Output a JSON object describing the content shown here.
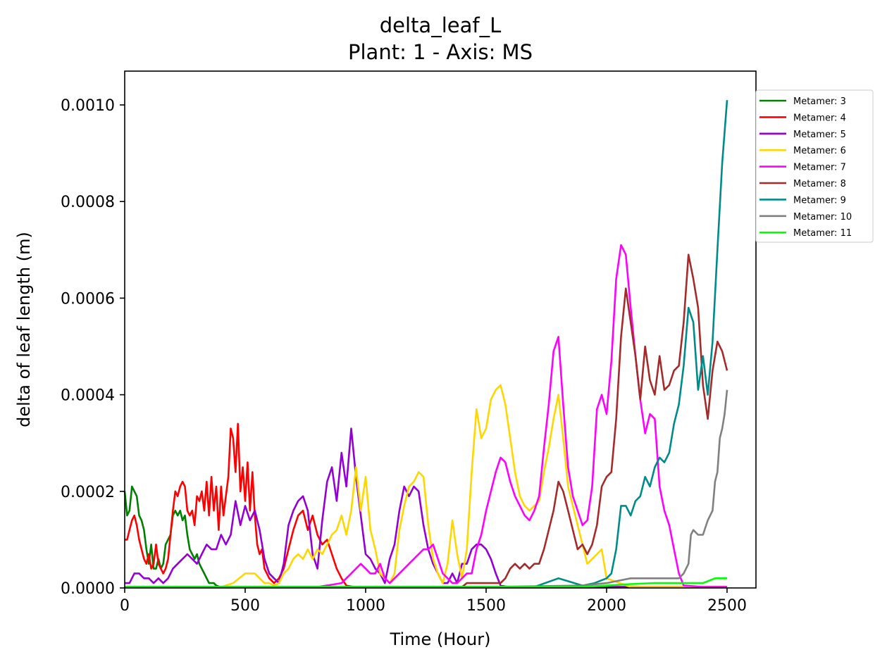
{
  "chart_data": {
    "type": "line",
    "title": "delta_leaf_L",
    "subtitle": "Plant: 1 - Axis: MS",
    "xlabel": "Time (Hour)",
    "ylabel": "delta of leaf length (m)",
    "xlim": [
      0,
      2620
    ],
    "ylim": [
      0,
      0.00107
    ],
    "xticks": [
      0,
      500,
      1000,
      1500,
      2000,
      2500
    ],
    "xtick_labels": [
      "0",
      "500",
      "1000",
      "1500",
      "2000",
      "2500"
    ],
    "yticks": [
      0,
      0.0002,
      0.0004,
      0.0006,
      0.0008,
      0.001
    ],
    "ytick_labels": [
      "0.0000",
      "0.0002",
      "0.0004",
      "0.0006",
      "0.0008",
      "0.0010"
    ],
    "grid": false,
    "legend_position": "upper-right-outside",
    "series": [
      {
        "name": "Metamer: 3",
        "color": "#008000",
        "x": [
          0,
          10,
          20,
          30,
          40,
          50,
          60,
          70,
          80,
          90,
          100,
          110,
          120,
          130,
          140,
          150,
          160,
          170,
          180,
          190,
          200,
          210,
          220,
          230,
          240,
          250,
          260,
          270,
          280,
          290,
          300,
          310,
          320,
          330,
          340,
          350,
          360,
          370,
          380,
          390,
          400,
          450,
          500,
          550,
          600,
          650,
          700,
          750,
          800,
          850,
          900,
          950,
          1000,
          1050,
          1100,
          1200,
          1300,
          1400,
          1500,
          1600,
          1700,
          1800,
          1900,
          2000,
          2100,
          2200,
          2300,
          2400,
          2500
        ],
        "y": [
          0.0002,
          0.00015,
          0.00016,
          0.00021,
          0.0002,
          0.00019,
          0.00015,
          0.00014,
          0.00012,
          8e-05,
          5e-05,
          9e-05,
          4e-05,
          4e-05,
          6e-05,
          4e-05,
          5e-05,
          9e-05,
          0.0001,
          0.00011,
          0.00015,
          0.00016,
          0.00015,
          0.00016,
          0.00014,
          0.00015,
          0.00011,
          8e-05,
          7e-05,
          6e-05,
          7e-05,
          5e-05,
          4e-05,
          3e-05,
          2e-05,
          1e-05,
          1e-05,
          1e-05,
          5e-06,
          3e-06,
          2e-06,
          2e-06,
          2e-06,
          2e-06,
          2e-06,
          2e-06,
          2e-06,
          2e-06,
          2e-06,
          2e-06,
          2e-06,
          2e-06,
          2e-06,
          2e-06,
          2e-06,
          2e-06,
          2e-06,
          2e-06,
          2e-06,
          2e-06,
          2e-06,
          2e-06,
          2e-06,
          2e-06,
          2e-06,
          2e-06,
          2e-06,
          2e-06,
          2e-06
        ]
      },
      {
        "name": "Metamer: 4",
        "color": "#ff0000",
        "x": [
          0,
          10,
          20,
          30,
          40,
          50,
          60,
          70,
          80,
          90,
          100,
          110,
          120,
          130,
          140,
          150,
          160,
          170,
          180,
          190,
          200,
          210,
          220,
          230,
          240,
          250,
          260,
          270,
          280,
          290,
          300,
          310,
          320,
          330,
          340,
          350,
          360,
          370,
          380,
          390,
          400,
          410,
          420,
          430,
          440,
          450,
          460,
          470,
          480,
          490,
          500,
          510,
          520,
          530,
          540,
          550,
          560,
          570,
          580,
          600,
          620,
          640,
          660,
          680,
          700,
          720,
          740,
          760,
          780,
          800,
          820,
          840,
          860,
          880,
          900,
          920,
          940,
          960,
          1000,
          1100,
          1200,
          1300,
          1400,
          1500,
          1600,
          1800,
          2000,
          2200,
          2400,
          2500
        ],
        "y": [
          0.0001,
          0.0001,
          0.00012,
          0.00014,
          0.00015,
          0.00013,
          0.0001,
          8e-05,
          6e-05,
          5e-05,
          7e-05,
          4e-05,
          5e-05,
          9e-05,
          5e-05,
          4e-05,
          3e-05,
          4e-05,
          6e-05,
          0.00011,
          0.00016,
          0.0002,
          0.00019,
          0.00021,
          0.00022,
          0.00021,
          0.00016,
          0.00015,
          0.00016,
          0.00013,
          0.00019,
          0.00018,
          0.0002,
          0.00016,
          0.00022,
          0.00015,
          0.00023,
          0.00016,
          0.00021,
          0.00012,
          0.00021,
          0.00015,
          0.00019,
          0.00023,
          0.00033,
          0.00031,
          0.00024,
          0.00034,
          0.0002,
          0.00025,
          0.00018,
          0.00026,
          0.00016,
          0.00024,
          0.00015,
          9e-05,
          7e-05,
          8e-05,
          4e-05,
          2e-05,
          1e-05,
          2e-05,
          4e-05,
          8e-05,
          0.00012,
          0.00015,
          0.00016,
          0.00012,
          0.00015,
          0.00011,
          9e-05,
          0.0001,
          7e-05,
          4e-05,
          2e-05,
          5e-06,
          3e-06,
          2e-06,
          2e-06,
          2e-06,
          2e-06,
          2e-06,
          2e-06,
          2e-06,
          2e-06,
          2e-06,
          2e-06,
          2e-06,
          2e-06,
          2e-06
        ]
      },
      {
        "name": "Metamer: 5",
        "color": "#9400d3",
        "x": [
          0,
          20,
          40,
          60,
          80,
          100,
          120,
          140,
          160,
          180,
          200,
          220,
          240,
          260,
          280,
          300,
          320,
          340,
          360,
          380,
          400,
          420,
          440,
          460,
          480,
          500,
          520,
          540,
          560,
          580,
          600,
          620,
          640,
          660,
          680,
          700,
          720,
          740,
          760,
          780,
          800,
          820,
          840,
          860,
          880,
          900,
          920,
          940,
          960,
          980,
          1000,
          1020,
          1040,
          1060,
          1080,
          1100,
          1120,
          1140,
          1160,
          1180,
          1200,
          1220,
          1240,
          1260,
          1280,
          1300,
          1320,
          1340,
          1360,
          1380,
          1400,
          1420,
          1440,
          1460,
          1480,
          1500,
          1520,
          1540,
          1560,
          1580,
          1600,
          1800,
          2000,
          2200,
          2400,
          2500
        ],
        "y": [
          1e-05,
          1e-05,
          3e-05,
          3e-05,
          2e-05,
          2e-05,
          1e-05,
          2e-05,
          1e-05,
          2e-05,
          4e-05,
          5e-05,
          6e-05,
          7e-05,
          6e-05,
          5e-05,
          7e-05,
          9e-05,
          8e-05,
          8e-05,
          0.00011,
          9e-05,
          0.00011,
          0.00018,
          0.00013,
          0.00017,
          0.00014,
          0.00016,
          0.00012,
          6e-05,
          3e-05,
          2e-05,
          1e-05,
          5e-05,
          0.00013,
          0.00016,
          0.00018,
          0.00019,
          0.00016,
          7e-05,
          4e-05,
          0.00014,
          0.00022,
          0.00025,
          0.00018,
          0.00028,
          0.00021,
          0.00033,
          0.00023,
          0.00015,
          7e-05,
          6e-05,
          4e-05,
          3e-05,
          1e-05,
          6e-05,
          9e-05,
          0.00016,
          0.00021,
          0.00019,
          0.00021,
          0.0002,
          0.00013,
          8e-05,
          5e-05,
          3e-05,
          1e-05,
          1e-05,
          3e-05,
          1e-05,
          5e-05,
          5e-05,
          8e-05,
          9e-05,
          9e-05,
          8e-05,
          6e-05,
          3e-05,
          5e-06,
          3e-06,
          2e-06,
          2e-06,
          2e-06,
          2e-06,
          2e-06,
          2e-06
        ]
      },
      {
        "name": "Metamer: 6",
        "color": "#ffd700",
        "x": [
          0,
          100,
          200,
          300,
          400,
          450,
          500,
          520,
          540,
          560,
          580,
          600,
          620,
          640,
          660,
          680,
          700,
          720,
          740,
          760,
          780,
          800,
          820,
          840,
          860,
          880,
          900,
          920,
          940,
          960,
          980,
          1000,
          1020,
          1040,
          1060,
          1080,
          1100,
          1120,
          1140,
          1160,
          1180,
          1200,
          1220,
          1240,
          1260,
          1280,
          1300,
          1320,
          1340,
          1360,
          1380,
          1400,
          1420,
          1440,
          1460,
          1480,
          1500,
          1520,
          1540,
          1560,
          1580,
          1600,
          1620,
          1640,
          1660,
          1680,
          1700,
          1720,
          1740,
          1760,
          1780,
          1800,
          1820,
          1840,
          1860,
          1880,
          1900,
          1920,
          1940,
          1960,
          1980,
          2000,
          2100,
          2300,
          2500
        ],
        "y": [
          2e-06,
          2e-06,
          2e-06,
          2e-06,
          2e-06,
          1e-05,
          3e-05,
          3e-05,
          3e-05,
          2e-05,
          1e-05,
          1e-05,
          5e-06,
          1e-05,
          3e-05,
          4e-05,
          6e-05,
          7e-05,
          6e-05,
          8e-05,
          6e-05,
          8e-05,
          7e-05,
          9e-05,
          0.00011,
          0.00012,
          0.00015,
          0.00011,
          0.00016,
          0.00025,
          0.00016,
          0.00023,
          0.00012,
          8e-05,
          3e-05,
          2e-05,
          1e-05,
          3e-05,
          0.00012,
          0.00017,
          0.00021,
          0.00022,
          0.00024,
          0.00023,
          0.00013,
          6e-05,
          3e-05,
          1e-05,
          5e-05,
          0.00014,
          7e-05,
          2e-05,
          8e-05,
          0.00024,
          0.00037,
          0.00031,
          0.00033,
          0.00039,
          0.00041,
          0.00042,
          0.00038,
          0.00031,
          0.00024,
          0.00019,
          0.00017,
          0.00016,
          0.00017,
          0.00018,
          0.00024,
          0.00029,
          0.00035,
          0.0004,
          0.00031,
          0.00021,
          0.00017,
          0.00013,
          9e-05,
          5e-05,
          6e-05,
          7e-05,
          8e-05,
          2e-05,
          2e-06,
          2e-06,
          2e-06
        ]
      },
      {
        "name": "Metamer: 7",
        "color": "#ff00ff",
        "x": [
          0,
          200,
          400,
          600,
          800,
          900,
          940,
          980,
          1000,
          1020,
          1040,
          1060,
          1080,
          1100,
          1120,
          1140,
          1160,
          1180,
          1200,
          1220,
          1240,
          1260,
          1280,
          1300,
          1320,
          1340,
          1360,
          1380,
          1400,
          1420,
          1440,
          1460,
          1480,
          1500,
          1520,
          1540,
          1560,
          1580,
          1600,
          1620,
          1640,
          1660,
          1680,
          1700,
          1720,
          1740,
          1760,
          1780,
          1800,
          1820,
          1840,
          1860,
          1880,
          1900,
          1920,
          1940,
          1960,
          1980,
          2000,
          2020,
          2040,
          2060,
          2080,
          2100,
          2120,
          2140,
          2160,
          2180,
          2200,
          2220,
          2240,
          2260,
          2280,
          2300,
          2320,
          2400,
          2500
        ],
        "y": [
          2e-06,
          2e-06,
          2e-06,
          2e-06,
          2e-06,
          1e-05,
          3e-05,
          5e-05,
          4e-05,
          3e-05,
          3e-05,
          5e-05,
          2e-05,
          1e-05,
          2e-05,
          3e-05,
          4e-05,
          5e-05,
          6e-05,
          7e-05,
          8e-05,
          8e-05,
          9e-05,
          6e-05,
          3e-05,
          2e-05,
          1e-05,
          1e-05,
          2e-05,
          3e-05,
          3e-05,
          8e-05,
          0.00011,
          0.00016,
          0.0002,
          0.00024,
          0.00027,
          0.00026,
          0.00022,
          0.00019,
          0.00017,
          0.00015,
          0.00014,
          0.00016,
          0.00019,
          0.00029,
          0.00038,
          0.00049,
          0.00052,
          0.00038,
          0.00025,
          0.00019,
          0.00016,
          0.00013,
          0.00014,
          0.00021,
          0.00037,
          0.0004,
          0.00036,
          0.00047,
          0.00064,
          0.00071,
          0.00069,
          0.00058,
          0.00048,
          0.00039,
          0.00032,
          0.00036,
          0.00035,
          0.00021,
          0.00016,
          0.00013,
          8e-05,
          3e-05,
          5e-06,
          2e-06,
          2e-06
        ]
      },
      {
        "name": "Metamer: 8",
        "color": "#a52a2a",
        "x": [
          0,
          400,
          800,
          1200,
          1400,
          1420,
          1440,
          1460,
          1480,
          1500,
          1520,
          1540,
          1560,
          1580,
          1600,
          1620,
          1640,
          1660,
          1680,
          1700,
          1720,
          1740,
          1760,
          1780,
          1800,
          1820,
          1840,
          1860,
          1880,
          1900,
          1920,
          1940,
          1960,
          1980,
          2000,
          2020,
          2040,
          2060,
          2080,
          2100,
          2120,
          2140,
          2160,
          2180,
          2200,
          2220,
          2240,
          2260,
          2280,
          2300,
          2320,
          2340,
          2360,
          2380,
          2400,
          2420,
          2440,
          2460,
          2480,
          2500
        ],
        "y": [
          2e-06,
          2e-06,
          2e-06,
          2e-06,
          2e-06,
          1e-05,
          1e-05,
          1e-05,
          1e-05,
          1e-05,
          1e-05,
          1e-05,
          1e-05,
          2e-05,
          4e-05,
          5e-05,
          4e-05,
          5e-05,
          4e-05,
          5e-05,
          5e-05,
          8e-05,
          0.00012,
          0.00016,
          0.00022,
          0.0002,
          0.00016,
          0.00012,
          8e-05,
          9e-05,
          7e-05,
          9e-05,
          0.00013,
          0.00021,
          0.00023,
          0.00024,
          0.00035,
          0.00052,
          0.00062,
          0.00055,
          0.00048,
          0.00039,
          0.0005,
          0.00043,
          0.0004,
          0.00048,
          0.00041,
          0.00042,
          0.00045,
          0.00046,
          0.00055,
          0.00069,
          0.00064,
          0.00058,
          0.00042,
          0.00035,
          0.00045,
          0.00051,
          0.00049,
          0.00045
        ]
      },
      {
        "name": "Metamer: 9",
        "color": "#008b8b",
        "x": [
          0,
          1000,
          1400,
          1700,
          1800,
          1900,
          1950,
          2000,
          2020,
          2040,
          2060,
          2080,
          2100,
          2120,
          2140,
          2160,
          2180,
          2200,
          2220,
          2240,
          2260,
          2280,
          2300,
          2320,
          2340,
          2360,
          2380,
          2400,
          2420,
          2440,
          2460,
          2480,
          2500
        ],
        "y": [
          2e-06,
          2e-06,
          2e-06,
          2e-06,
          2e-05,
          5e-06,
          1e-05,
          2e-05,
          3e-05,
          8e-05,
          0.00017,
          0.00017,
          0.00015,
          0.00018,
          0.00019,
          0.00023,
          0.00021,
          0.00025,
          0.00027,
          0.00026,
          0.00028,
          0.00034,
          0.00038,
          0.00046,
          0.00058,
          0.00055,
          0.00041,
          0.00048,
          0.0004,
          0.00051,
          0.0007,
          0.00088,
          0.00101
        ]
      },
      {
        "name": "Metamer: 10",
        "color": "#808080",
        "x": [
          0,
          1000,
          1500,
          1900,
          2000,
          2100,
          2200,
          2250,
          2300,
          2320,
          2340,
          2350,
          2360,
          2380,
          2400,
          2420,
          2440,
          2450,
          2460,
          2470,
          2480,
          2490,
          2500
        ],
        "y": [
          2e-06,
          2e-06,
          2e-06,
          5e-06,
          1e-05,
          2e-05,
          2e-05,
          2e-05,
          2e-05,
          3e-05,
          5e-05,
          0.00011,
          0.00012,
          0.00011,
          0.00011,
          0.00014,
          0.00016,
          0.00022,
          0.00024,
          0.00031,
          0.00033,
          0.00036,
          0.00041
        ]
      },
      {
        "name": "Metamer: 11",
        "color": "#00ff00",
        "x": [
          0,
          1000,
          1900,
          2000,
          2100,
          2200,
          2300,
          2350,
          2400,
          2450,
          2480,
          2500
        ],
        "y": [
          2e-06,
          2e-06,
          2e-06,
          5e-06,
          8e-06,
          1e-05,
          1e-05,
          1e-05,
          1e-05,
          2e-05,
          2e-05,
          2e-05
        ]
      }
    ]
  }
}
